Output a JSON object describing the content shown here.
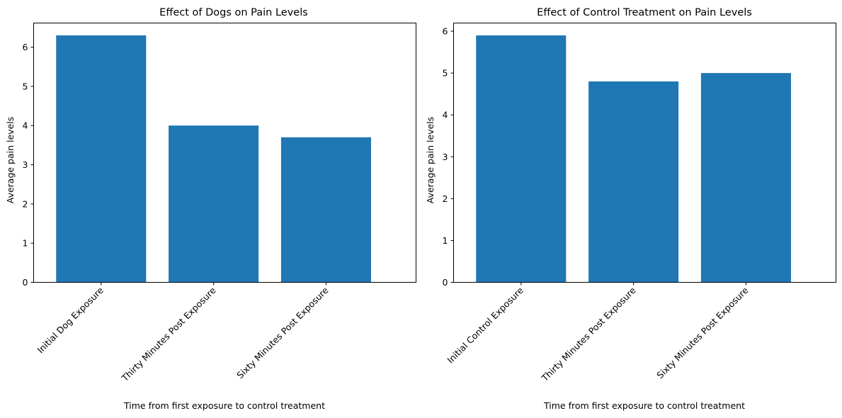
{
  "chart_data": [
    {
      "type": "bar",
      "title": "Effect of Dogs on Pain Levels",
      "xlabel": "Time from first exposure to control treatment",
      "ylabel": "Average pain levels",
      "categories": [
        "Initial Dog Exposure",
        "Thirty Minutes Post Exposure",
        "Sixty Minutes Post Exposure"
      ],
      "values": [
        6.3,
        4.0,
        3.7
      ],
      "ylim": [
        0,
        6.615
      ],
      "yticks": [
        "0",
        "1",
        "2",
        "3",
        "4",
        "5",
        "6"
      ],
      "grid": false,
      "bar_color": "#1f77b4"
    },
    {
      "type": "bar",
      "title": "Effect of Control Treatment on Pain Levels",
      "xlabel": "Time from first exposure to control treatment",
      "ylabel": "Average pain levels",
      "categories": [
        "Initial Control Exposure",
        "Thirty Minutes Post Exposure",
        "Sixty Minutes Post Exposure"
      ],
      "values": [
        5.9,
        4.8,
        5.0
      ],
      "ylim": [
        0,
        6.195
      ],
      "yticks": [
        "0",
        "1",
        "2",
        "3",
        "4",
        "5",
        "6"
      ],
      "grid": false,
      "bar_color": "#1f77b4"
    }
  ]
}
